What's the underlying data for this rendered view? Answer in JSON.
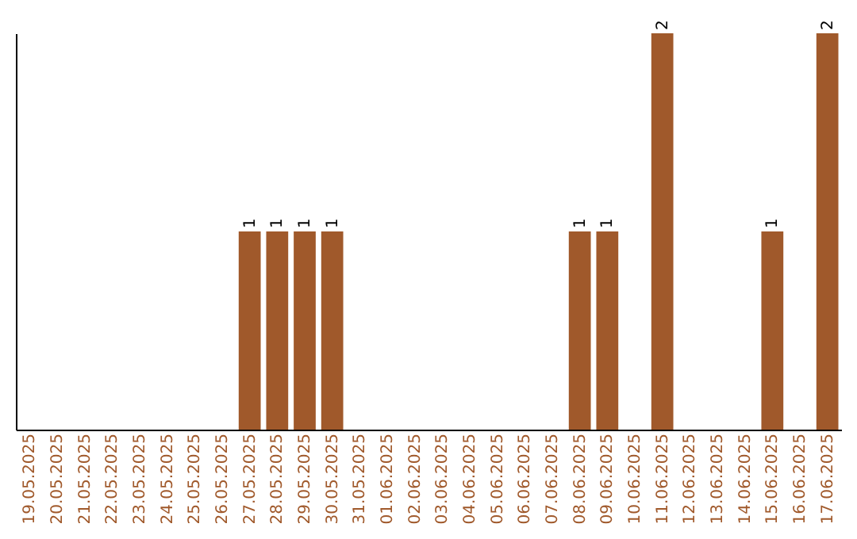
{
  "chart_data": {
    "type": "bar",
    "categories": [
      "19.05.2025",
      "20.05.2025",
      "21.05.2025",
      "22.05.2025",
      "23.05.2025",
      "24.05.2025",
      "25.05.2025",
      "26.05.2025",
      "27.05.2025",
      "28.05.2025",
      "29.05.2025",
      "30.05.2025",
      "31.05.2025",
      "01.06.2025",
      "02.06.2025",
      "03.06.2025",
      "04.06.2025",
      "05.06.2025",
      "06.06.2025",
      "07.06.2025",
      "08.06.2025",
      "09.06.2025",
      "10.06.2025",
      "11.06.2025",
      "12.06.2025",
      "13.06.2025",
      "14.06.2025",
      "15.06.2025",
      "16.06.2025",
      "17.06.2025"
    ],
    "values": [
      0,
      0,
      0,
      0,
      0,
      0,
      0,
      0,
      1,
      1,
      1,
      1,
      0,
      0,
      0,
      0,
      0,
      0,
      0,
      0,
      1,
      1,
      0,
      2,
      0,
      0,
      0,
      1,
      0,
      2
    ],
    "value_labels": [
      null,
      null,
      null,
      null,
      null,
      null,
      null,
      null,
      "1",
      "1",
      "1",
      "1",
      null,
      null,
      null,
      null,
      null,
      null,
      null,
      null,
      "1",
      "1",
      null,
      "2",
      null,
      null,
      null,
      "1",
      null,
      "2"
    ],
    "color": "#a0592b",
    "tick_labels": "x",
    "grid": false
  }
}
